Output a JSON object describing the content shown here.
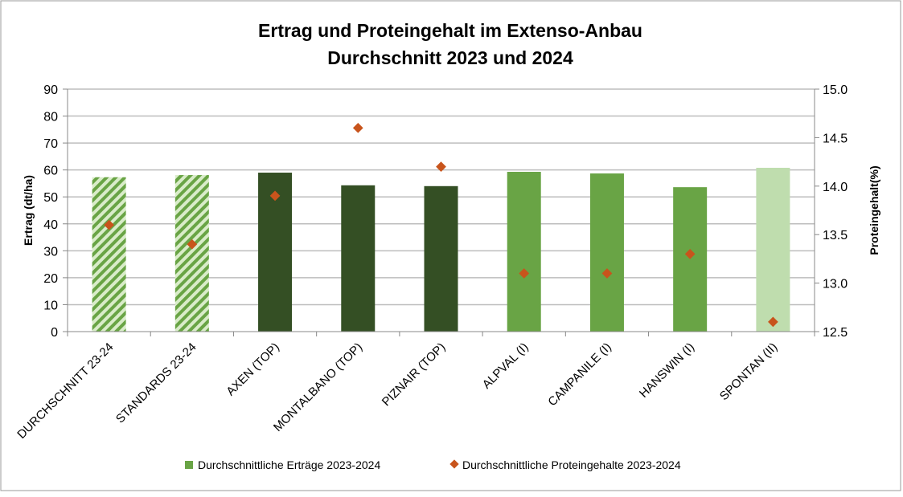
{
  "chart_data": {
    "type": "bar",
    "title": "Ertrag und Proteingehalt im Extenso-Anbau",
    "subtitle": "Durchschnitt 2023 und 2024",
    "ylabel": "Ertrag (dt/ha)",
    "y2label": "Proteingehalt(%)",
    "ylim": [
      0,
      90
    ],
    "y2lim": [
      12.5,
      15.0
    ],
    "yticks": [
      "0",
      "10",
      "20",
      "30",
      "40",
      "50",
      "60",
      "70",
      "80",
      "90"
    ],
    "y2ticks": [
      "12.5",
      "13.0",
      "13.5",
      "14.0",
      "14.5",
      "15.0"
    ],
    "grid": true,
    "legend_position": "bottom",
    "categories": [
      "DURCHSCHNITT 23-24",
      "STANDARDS 23-24",
      "AXEN (TOP)",
      "MONTALBANO (TOP)",
      "PIZNAIR (TOP)",
      "ALPVAL (I)",
      "CAMPANILE (I)",
      "HANSWIN  (I)",
      "SPONTAN  (II)"
    ],
    "series": [
      {
        "name": "Durchschnittliche Erträge 2023-2024",
        "kind": "bar",
        "axis": "left",
        "values": [
          57.3,
          58.1,
          59.0,
          54.3,
          54.0,
          59.3,
          58.7,
          53.6,
          60.8
        ],
        "colors": [
          "hatch",
          "hatch",
          "#344f24",
          "#344f24",
          "#344f24",
          "#69a445",
          "#69a445",
          "#69a445",
          "#bfddae"
        ],
        "legend_color": "#69a445"
      },
      {
        "name": "Durchschnittliche Proteingehalte 2023-2024",
        "kind": "scatter",
        "axis": "right",
        "values": [
          13.6,
          13.4,
          13.9,
          14.6,
          14.2,
          13.1,
          13.1,
          13.3,
          12.6
        ],
        "color": "#c8541c"
      }
    ]
  }
}
